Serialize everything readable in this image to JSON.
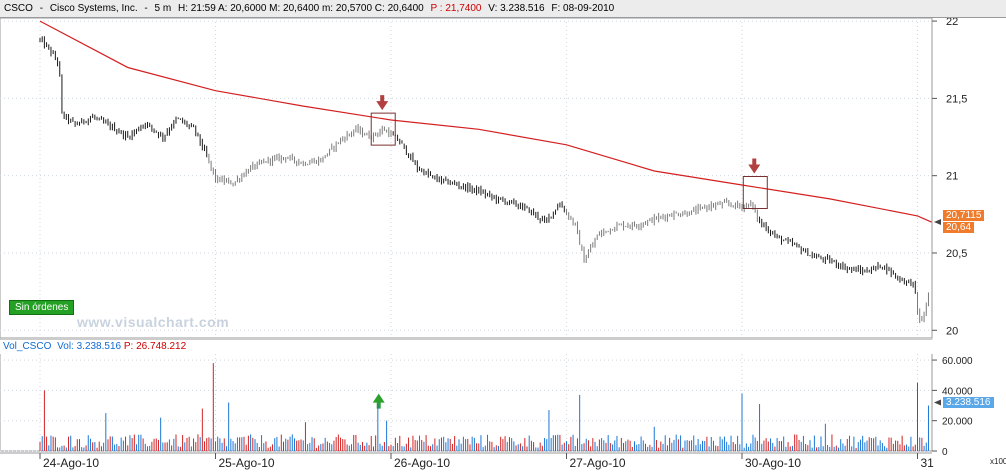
{
  "header": {
    "symbol": "CSCO",
    "name": "Cisco Systems, Inc.",
    "timeframe": "5 m",
    "ohlc": "H: 21:59  A: 20,6000  M: 20,6400  m: 20,5700  C: 20,6400",
    "p_value": "P : 21,7400",
    "volume": "V: 3.238.516",
    "date": "F: 08-09-2010"
  },
  "orders_button": "Sin órdenes",
  "watermark": "www.visualchart.com",
  "volume_header": {
    "label": "Vol_CSCO",
    "vol": "Vol: 3.238.516",
    "p_value": "P: 26.748.212"
  },
  "badges": {
    "ma_value": "20,7115",
    "last_price": "20,64",
    "last_volume": "3.238.516"
  },
  "x100_label": "x100",
  "colors": {
    "price": "#1a1a1a",
    "price_grey": "#7a7a7a",
    "ma": "#d42020",
    "vol_up": "#1b78d6",
    "vol_down": "#d22424",
    "grid": "#cfd7df",
    "arrow_down": "#b34040",
    "arrow_up": "#2ea02e",
    "badge_orange": "#f07b2a",
    "badge_blue": "#5aa8e8"
  },
  "chart_data": {
    "type": "candlestick",
    "price": {
      "y_ticks": [
        "22",
        "21,5",
        "21",
        "20,5",
        "20"
      ],
      "ylim": [
        19.95,
        22.02
      ]
    },
    "volume": {
      "y_ticks": [
        "60.000",
        "40.000",
        "20.000",
        "0"
      ],
      "ylim": [
        0,
        64000
      ]
    },
    "x_labels": [
      "24-Ago-10",
      "25-Ago-10",
      "26-Ago-10",
      "27-Ago-10",
      "30-Ago-10",
      "31"
    ],
    "sessions_x": [
      0,
      1,
      2,
      3,
      4,
      5
    ],
    "close_path": [
      [
        0.0,
        21.88
      ],
      [
        0.05,
        21.82
      ],
      [
        0.11,
        21.72
      ],
      [
        0.12,
        21.4
      ],
      [
        0.2,
        21.33
      ],
      [
        0.3,
        21.38
      ],
      [
        0.4,
        21.32
      ],
      [
        0.5,
        21.25
      ],
      [
        0.6,
        21.34
      ],
      [
        0.7,
        21.25
      ],
      [
        0.78,
        21.37
      ],
      [
        0.88,
        21.3
      ],
      [
        0.94,
        21.15
      ],
      [
        1.0,
        20.98
      ],
      [
        1.1,
        20.95
      ],
      [
        1.2,
        21.05
      ],
      [
        1.3,
        21.1
      ],
      [
        1.4,
        21.12
      ],
      [
        1.5,
        21.08
      ],
      [
        1.6,
        21.1
      ],
      [
        1.7,
        21.22
      ],
      [
        1.8,
        21.3
      ],
      [
        1.88,
        21.25
      ],
      [
        1.96,
        21.3
      ],
      [
        2.05,
        21.22
      ],
      [
        2.15,
        21.05
      ],
      [
        2.25,
        20.98
      ],
      [
        2.35,
        20.95
      ],
      [
        2.5,
        20.9
      ],
      [
        2.6,
        20.85
      ],
      [
        2.7,
        20.82
      ],
      [
        2.78,
        20.78
      ],
      [
        2.88,
        20.7
      ],
      [
        2.96,
        20.82
      ],
      [
        3.05,
        20.68
      ],
      [
        3.1,
        20.45
      ],
      [
        3.18,
        20.62
      ],
      [
        3.3,
        20.68
      ],
      [
        3.4,
        20.68
      ],
      [
        3.5,
        20.72
      ],
      [
        3.6,
        20.75
      ],
      [
        3.7,
        20.76
      ],
      [
        3.8,
        20.8
      ],
      [
        3.9,
        20.82
      ],
      [
        4.0,
        20.8
      ],
      [
        4.05,
        20.82
      ],
      [
        4.1,
        20.7
      ],
      [
        4.2,
        20.6
      ],
      [
        4.3,
        20.55
      ],
      [
        4.4,
        20.48
      ],
      [
        4.5,
        20.45
      ],
      [
        4.6,
        20.4
      ],
      [
        4.7,
        20.38
      ],
      [
        4.8,
        20.42
      ],
      [
        4.9,
        20.33
      ],
      [
        4.98,
        20.3
      ],
      [
        5.0,
        20.12
      ],
      [
        5.02,
        20.04
      ],
      [
        5.04,
        20.12
      ],
      [
        5.07,
        20.26
      ]
    ],
    "moving_average": [
      [
        0.0,
        22.0
      ],
      [
        0.5,
        21.7
      ],
      [
        1.0,
        21.55
      ],
      [
        1.5,
        21.45
      ],
      [
        2.0,
        21.36
      ],
      [
        2.5,
        21.3
      ],
      [
        3.0,
        21.2
      ],
      [
        3.5,
        21.03
      ],
      [
        4.0,
        20.94
      ],
      [
        4.5,
        20.85
      ],
      [
        5.0,
        20.74
      ],
      [
        5.08,
        20.7
      ]
    ],
    "signals": [
      {
        "type": "down",
        "x": 1.95,
        "price": 21.34
      },
      {
        "type": "down",
        "x": 4.07,
        "price": 20.93
      }
    ],
    "volume_signals": [
      {
        "type": "up",
        "x": 1.93,
        "value": 28000
      }
    ],
    "volume_spikes": [
      [
        0.02,
        40000
      ],
      [
        0.38,
        25000
      ],
      [
        0.69,
        22000
      ],
      [
        0.93,
        28000
      ],
      [
        0.99,
        58000
      ],
      [
        1.08,
        32000
      ],
      [
        1.51,
        19000
      ],
      [
        1.92,
        31000
      ],
      [
        1.98,
        20000
      ],
      [
        2.9,
        27000
      ],
      [
        3.08,
        37000
      ],
      [
        3.5,
        16000
      ],
      [
        4.0,
        38000
      ],
      [
        4.1,
        31000
      ],
      [
        4.48,
        18000
      ],
      [
        5.0,
        45000
      ],
      [
        5.06,
        30000
      ]
    ]
  }
}
